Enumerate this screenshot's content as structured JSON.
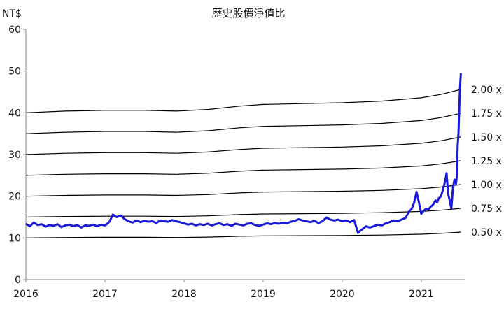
{
  "chart_data": {
    "type": "line",
    "title": "歷史股價淨值比",
    "y_unit_label": "NT$",
    "xlabel": "",
    "ylabel": "",
    "ylim": [
      0,
      60
    ],
    "xlim": [
      2016,
      2021.5
    ],
    "x_ticks": [
      2016,
      2017,
      2018,
      2019,
      2020,
      2021
    ],
    "x_tick_labels": [
      "2016",
      "2017",
      "2018",
      "2019",
      "2020",
      "2021"
    ],
    "y_ticks": [
      0,
      10,
      20,
      30,
      40,
      50,
      60
    ],
    "y_tick_labels": [
      "0",
      "10",
      "20",
      "30",
      "40",
      "50",
      "60"
    ],
    "grid": false,
    "price_color": "#1a1adb",
    "band_color": "#000000",
    "bands": [
      {
        "label": "2.00 x",
        "multiple": 2.0
      },
      {
        "label": "1.75 x",
        "multiple": 1.75
      },
      {
        "label": "1.50 x",
        "multiple": 1.5
      },
      {
        "label": "1.25 x",
        "multiple": 1.25
      },
      {
        "label": "1.00 x",
        "multiple": 1.0
      },
      {
        "label": "0.75 x",
        "multiple": 0.75
      },
      {
        "label": "0.50 x",
        "multiple": 0.5
      }
    ],
    "book_value": {
      "x": [
        2016.0,
        2016.5,
        2017.0,
        2017.5,
        2017.9,
        2018.3,
        2018.7,
        2019.0,
        2019.5,
        2020.0,
        2020.5,
        2021.0,
        2021.25,
        2021.5
      ],
      "y": [
        20.0,
        20.2,
        20.3,
        20.3,
        20.2,
        20.4,
        20.8,
        21.0,
        21.1,
        21.2,
        21.4,
        21.8,
        22.2,
        22.8
      ]
    },
    "series": [
      {
        "x": [
          2016.0,
          2016.05,
          2016.1,
          2016.15,
          2016.2,
          2016.25,
          2016.3,
          2016.35,
          2016.4,
          2016.45,
          2016.5,
          2016.55,
          2016.6,
          2016.65,
          2016.7,
          2016.75,
          2016.8,
          2016.85,
          2016.9,
          2016.95,
          2017.0,
          2017.03,
          2017.06,
          2017.1,
          2017.15,
          2017.2,
          2017.25,
          2017.3,
          2017.35,
          2017.4,
          2017.45,
          2017.5,
          2017.55,
          2017.6,
          2017.65,
          2017.7,
          2017.75,
          2017.8,
          2017.85,
          2017.9,
          2017.95,
          2018.0,
          2018.05,
          2018.1,
          2018.15,
          2018.2,
          2018.25,
          2018.3,
          2018.35,
          2018.4,
          2018.45,
          2018.5,
          2018.55,
          2018.6,
          2018.65,
          2018.7,
          2018.75,
          2018.8,
          2018.85,
          2018.9,
          2018.95,
          2019.0,
          2019.05,
          2019.1,
          2019.15,
          2019.2,
          2019.25,
          2019.3,
          2019.35,
          2019.4,
          2019.45,
          2019.5,
          2019.55,
          2019.6,
          2019.65,
          2019.7,
          2019.75,
          2019.8,
          2019.85,
          2019.9,
          2019.95,
          2020.0,
          2020.05,
          2020.1,
          2020.15,
          2020.18,
          2020.2,
          2020.22,
          2020.25,
          2020.3,
          2020.35,
          2020.4,
          2020.45,
          2020.5,
          2020.55,
          2020.6,
          2020.65,
          2020.7,
          2020.75,
          2020.8,
          2020.85,
          2020.88,
          2020.91,
          2020.94,
          2020.97,
          2021.0,
          2021.03,
          2021.06,
          2021.09,
          2021.12,
          2021.15,
          2021.18,
          2021.2,
          2021.22,
          2021.25,
          2021.28,
          2021.3,
          2021.32,
          2021.34,
          2021.36,
          2021.38,
          2021.4,
          2021.42,
          2021.44,
          2021.45,
          2021.46,
          2021.47,
          2021.48,
          2021.49,
          2021.5
        ],
        "y": [
          13.4,
          12.8,
          13.7,
          13.1,
          13.3,
          12.7,
          13.1,
          12.9,
          13.3,
          12.6,
          13.0,
          13.2,
          12.8,
          13.1,
          12.5,
          13.0,
          12.9,
          13.2,
          12.8,
          13.2,
          13.0,
          13.4,
          14.0,
          15.6,
          15.0,
          15.4,
          14.5,
          14.0,
          13.7,
          14.2,
          13.8,
          14.1,
          13.9,
          14.0,
          13.6,
          14.2,
          14.0,
          13.9,
          14.3,
          14.0,
          13.8,
          13.5,
          13.2,
          13.4,
          13.0,
          13.3,
          13.1,
          13.4,
          13.0,
          13.3,
          13.5,
          13.1,
          13.3,
          12.9,
          13.4,
          13.2,
          13.0,
          13.4,
          13.5,
          13.1,
          12.9,
          13.2,
          13.5,
          13.3,
          13.6,
          13.4,
          13.7,
          13.5,
          13.9,
          14.1,
          14.5,
          14.2,
          14.0,
          13.8,
          14.1,
          13.6,
          14.0,
          14.9,
          14.4,
          14.2,
          14.4,
          14.0,
          14.2,
          13.8,
          14.3,
          12.5,
          11.2,
          11.6,
          12.0,
          12.8,
          12.5,
          12.8,
          13.2,
          13.0,
          13.5,
          13.8,
          14.2,
          14.0,
          14.4,
          14.8,
          16.5,
          17.0,
          18.5,
          21.0,
          18.5,
          15.8,
          16.5,
          17.0,
          16.8,
          17.5,
          18.0,
          19.0,
          18.5,
          19.5,
          20.0,
          22.0,
          23.5,
          25.5,
          20.5,
          19.0,
          17.0,
          22.0,
          24.0,
          23.0,
          25.0,
          32.0,
          35.0,
          41.0,
          46.0,
          49.5
        ]
      }
    ]
  }
}
